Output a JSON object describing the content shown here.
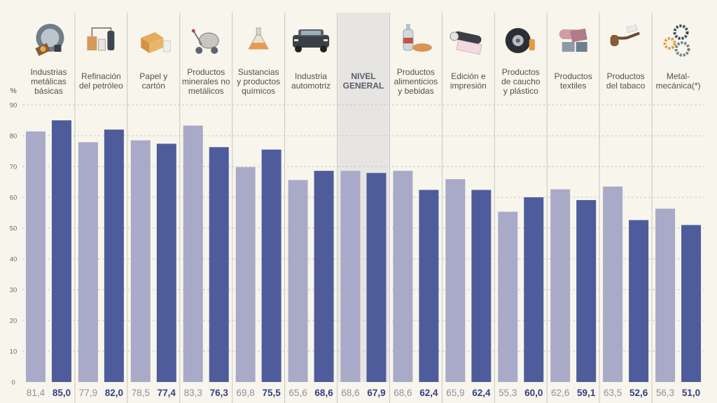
{
  "chart_data": {
    "type": "bar",
    "ylabel": "%",
    "ylim": [
      0,
      90
    ],
    "yticks": [
      0,
      10,
      20,
      30,
      40,
      50,
      60,
      70,
      80,
      90
    ],
    "grid": true,
    "categories": [
      {
        "label": [
          "Industrias",
          "metálicas",
          "básicas"
        ],
        "icon": "steel-industry-icon",
        "highlight": false
      },
      {
        "label": [
          "Refinación",
          "del petróleo"
        ],
        "icon": "refinery-icon",
        "highlight": false
      },
      {
        "label": [
          "Papel y",
          "cartón"
        ],
        "icon": "cardboard-box-icon",
        "highlight": false
      },
      {
        "label": [
          "Productos",
          "minerales no",
          "metálicos"
        ],
        "icon": "cement-mixer-icon",
        "highlight": false
      },
      {
        "label": [
          "Sustancias",
          "y productos",
          "químicos"
        ],
        "icon": "flask-icon",
        "highlight": false
      },
      {
        "label": [
          "Industria",
          "automotriz"
        ],
        "icon": "truck-icon",
        "highlight": false
      },
      {
        "label": [
          "NIVEL",
          "GENERAL"
        ],
        "icon": "",
        "highlight": true
      },
      {
        "label": [
          "Productos",
          "alimenticios",
          "y bebidas"
        ],
        "icon": "bottle-bread-icon",
        "highlight": false
      },
      {
        "label": [
          "Edición e",
          "impresión"
        ],
        "icon": "paper-roll-icon",
        "highlight": false
      },
      {
        "label": [
          "Productos",
          "de caucho",
          "y plástico"
        ],
        "icon": "tire-icon",
        "highlight": false
      },
      {
        "label": [
          "Productos",
          "textiles"
        ],
        "icon": "fabric-icon",
        "highlight": false
      },
      {
        "label": [
          "Productos",
          "del tabaco"
        ],
        "icon": "pipe-icon",
        "highlight": false
      },
      {
        "label": [
          "Metal-",
          "mecánica(*)"
        ],
        "icon": "gears-icon",
        "highlight": false
      }
    ],
    "series": [
      {
        "color": "#a9aac8",
        "values": [
          81.4,
          77.9,
          78.5,
          83.3,
          69.8,
          65.6,
          68.6,
          68.6,
          65.9,
          55.3,
          62.6,
          63.5,
          56.3
        ],
        "labels": [
          "81,4",
          "77,9",
          "78,5",
          "83,3",
          "69,8",
          "65,6",
          "68,6",
          "68,6",
          "65,9",
          "55,3",
          "62,6",
          "63,5",
          "56,3"
        ]
      },
      {
        "color": "#4e5c9c",
        "values": [
          85.0,
          82.0,
          77.4,
          76.3,
          75.5,
          68.6,
          67.9,
          62.4,
          62.4,
          60.0,
          59.1,
          52.6,
          51.0
        ],
        "labels": [
          "85,0",
          "82,0",
          "77,4",
          "76,3",
          "75,5",
          "68,6",
          "67,9",
          "62,4",
          "62,4",
          "60,0",
          "59,1",
          "52,6",
          "51,0"
        ]
      }
    ]
  }
}
